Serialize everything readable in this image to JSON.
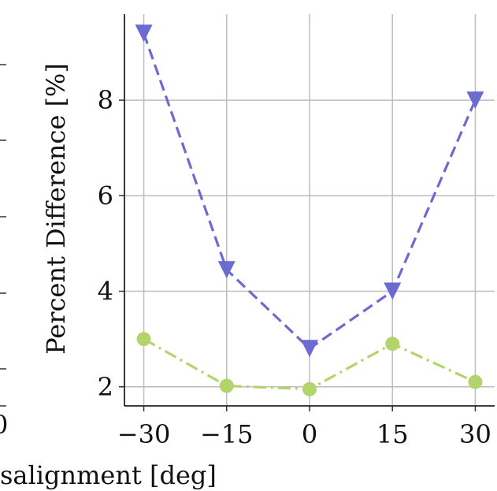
{
  "chart_data": {
    "type": "line",
    "title": "",
    "xlabel": "Misalignment [deg]",
    "xlabel_visible": "salignment [deg]",
    "ylabel": "Percent Difference [%]",
    "x": [
      -30,
      -15,
      0,
      15,
      30
    ],
    "x_tick_labels": [
      "−30",
      "−15",
      "0",
      "15",
      "30"
    ],
    "y_ticks": [
      2,
      4,
      6,
      8
    ],
    "y_tick_labels": [
      "2",
      "4",
      "6",
      "8"
    ],
    "xlim": [
      -33.5,
      33.5
    ],
    "ylim": [
      1.6,
      9.8
    ],
    "grid": true,
    "legend": "none",
    "series": [
      {
        "values": [
          9.4,
          4.45,
          2.8,
          4.0,
          8.0
        ],
        "color": "#6b6bd0",
        "marker": "triangle-down",
        "linestyle": "dashed"
      },
      {
        "values": [
          3.0,
          2.02,
          1.95,
          2.9,
          2.1
        ],
        "color": "#b3d36b",
        "marker": "circle",
        "linestyle": "dashdot"
      }
    ],
    "left_panel_fragment": {
      "x_tick_label": "0"
    }
  }
}
